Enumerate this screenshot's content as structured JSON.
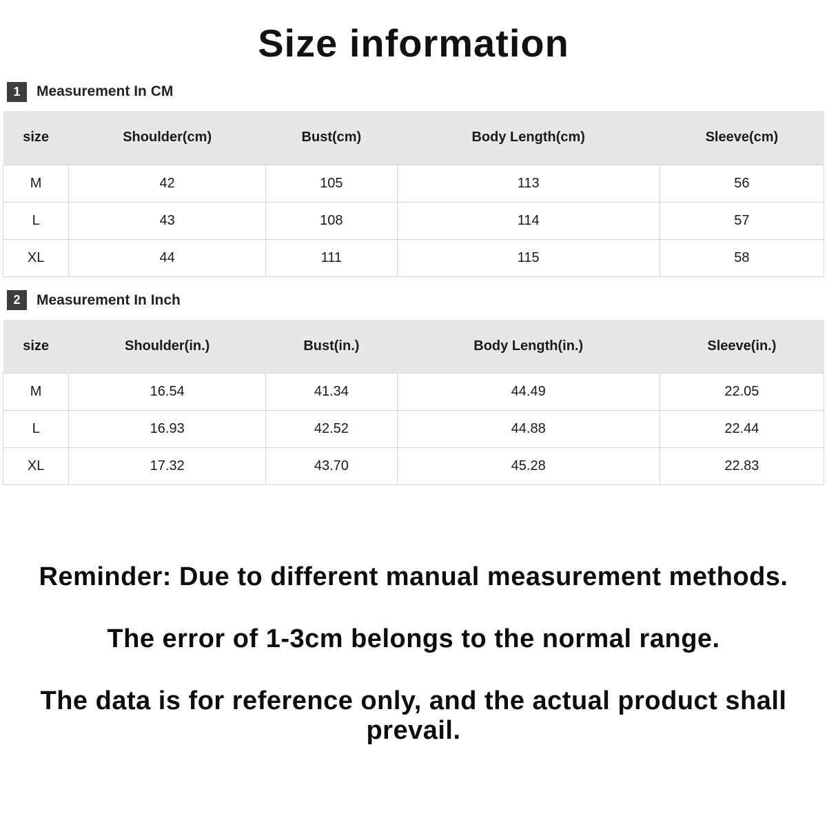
{
  "page": {
    "title": "Size information"
  },
  "colors": {
    "table_header_bg": "#e7e7e7",
    "badge_bg": "#3d3d3d",
    "border": "#d6d6d6",
    "text": "#111111"
  },
  "sections": [
    {
      "badge": "1",
      "heading": "Measurement In CM",
      "table": {
        "headers": [
          "size",
          "Shoulder(cm)",
          "Bust(cm)",
          "Body Length(cm)",
          "Sleeve(cm)"
        ],
        "rows": [
          [
            "M",
            "42",
            "105",
            "113",
            "56"
          ],
          [
            "L",
            "43",
            "108",
            "114",
            "57"
          ],
          [
            "XL",
            "44",
            "111",
            "115",
            "58"
          ]
        ]
      }
    },
    {
      "badge": "2",
      "heading": "Measurement In Inch",
      "table": {
        "headers": [
          "size",
          "Shoulder(in.)",
          "Bust(in.)",
          "Body Length(in.)",
          "Sleeve(in.)"
        ],
        "rows": [
          [
            "M",
            "16.54",
            "41.34",
            "44.49",
            "22.05"
          ],
          [
            "L",
            "16.93",
            "42.52",
            "44.88",
            "22.44"
          ],
          [
            "XL",
            "17.32",
            "43.70",
            "45.28",
            "22.83"
          ]
        ]
      }
    }
  ],
  "reminder": {
    "lines": [
      "Reminder: Due to different manual measurement methods.",
      "The error of 1-3cm belongs to the normal range.",
      "The data is for reference only, and the actual product shall prevail."
    ]
  }
}
